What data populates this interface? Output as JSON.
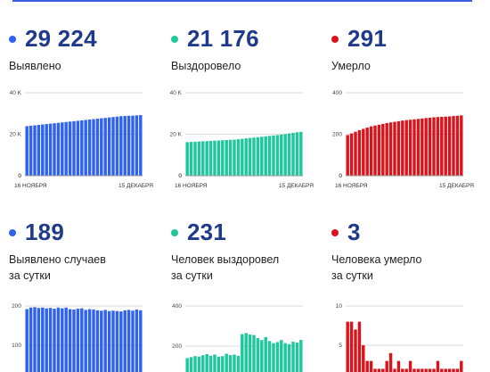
{
  "colors": {
    "blue": "#2f62f0",
    "green": "#1ec79c",
    "red": "#d9141c",
    "title": "#1f3a8a"
  },
  "panels": [
    {
      "value": "29 224",
      "label": "Выявлено",
      "color_key": "blue"
    },
    {
      "value": "21 176",
      "label": "Выздоровело",
      "color_key": "green"
    },
    {
      "value": "291",
      "label": "Умерло",
      "color_key": "red"
    },
    {
      "value": "189",
      "label": "Выявлено случаев\nза сутки",
      "color_key": "blue"
    },
    {
      "value": "231",
      "label": "Человек выздоровел\nза сутки",
      "color_key": "green"
    },
    {
      "value": "3",
      "label": "Человека умерло\nза сутки",
      "color_key": "red"
    }
  ],
  "chart_data": [
    {
      "type": "bar",
      "series_color": "blue",
      "x_start": "16 НОЯБРЯ",
      "x_end": "15 ДЕКАБРЯ",
      "ylim": [
        0,
        40000
      ],
      "yticks": [
        0,
        20000,
        40000
      ],
      "ytick_labels": [
        "0",
        "20 K",
        "40 K"
      ],
      "values": [
        23900,
        24100,
        24300,
        24500,
        24700,
        24900,
        25100,
        25300,
        25500,
        25700,
        25900,
        26100,
        26300,
        26500,
        26700,
        26900,
        27100,
        27300,
        27500,
        27700,
        27900,
        28100,
        28300,
        28500,
        28700,
        28800,
        28900,
        29000,
        29100,
        29224
      ]
    },
    {
      "type": "bar",
      "series_color": "green",
      "x_start": "16 НОЯБРЯ",
      "x_end": "15 ДЕКАБРЯ",
      "ylim": [
        0,
        40000
      ],
      "yticks": [
        0,
        20000,
        40000
      ],
      "ytick_labels": [
        "0",
        "20 K",
        "40 K"
      ],
      "values": [
        16200,
        16300,
        16400,
        16500,
        16600,
        16700,
        16800,
        16900,
        17000,
        17100,
        17200,
        17300,
        17400,
        17600,
        17800,
        18000,
        18200,
        18400,
        18600,
        18800,
        19000,
        19200,
        19400,
        19600,
        19800,
        20100,
        20400,
        20700,
        20950,
        21176
      ]
    },
    {
      "type": "bar",
      "series_color": "red",
      "x_start": "16 НОЯБРЯ",
      "x_end": "15 ДЕКАБРЯ",
      "ylim": [
        0,
        400
      ],
      "yticks": [
        0,
        200,
        400
      ],
      "ytick_labels": [
        "0",
        "200",
        "400"
      ],
      "values": [
        196,
        204,
        212,
        220,
        226,
        232,
        238,
        242,
        246,
        250,
        254,
        257,
        260,
        263,
        266,
        268,
        270,
        272,
        274,
        276,
        278,
        280,
        282,
        283,
        284,
        285,
        286,
        288,
        289,
        291
      ]
    },
    {
      "type": "bar",
      "series_color": "blue",
      "ylim": [
        0,
        200
      ],
      "yticks": [
        100,
        200
      ],
      "ytick_labels": [
        "100",
        "200"
      ],
      "values": [
        192,
        196,
        197,
        195,
        196,
        194,
        195,
        193,
        196,
        194,
        196,
        192,
        191,
        193,
        194,
        190,
        192,
        191,
        189,
        188,
        190,
        187,
        188,
        187,
        186,
        189,
        190,
        188,
        191,
        189
      ]
    },
    {
      "type": "bar",
      "series_color": "green",
      "ylim": [
        0,
        400
      ],
      "yticks": [
        200,
        400
      ],
      "ytick_labels": [
        "200",
        "400"
      ],
      "values": [
        140,
        145,
        150,
        148,
        155,
        160,
        152,
        158,
        148,
        150,
        162,
        155,
        158,
        152,
        260,
        265,
        258,
        255,
        240,
        230,
        245,
        225,
        215,
        220,
        230,
        215,
        210,
        222,
        218,
        231
      ]
    },
    {
      "type": "bar",
      "series_color": "red",
      "ylim": [
        0,
        10
      ],
      "yticks": [
        5,
        10
      ],
      "ytick_labels": [
        "5",
        "10"
      ],
      "values": [
        8,
        8,
        7,
        8,
        5,
        3,
        3,
        2,
        2,
        2,
        3,
        4,
        2,
        3,
        2,
        2,
        3,
        2,
        2,
        2,
        2,
        2,
        2,
        3,
        2,
        2,
        2,
        2,
        2,
        3
      ]
    }
  ]
}
